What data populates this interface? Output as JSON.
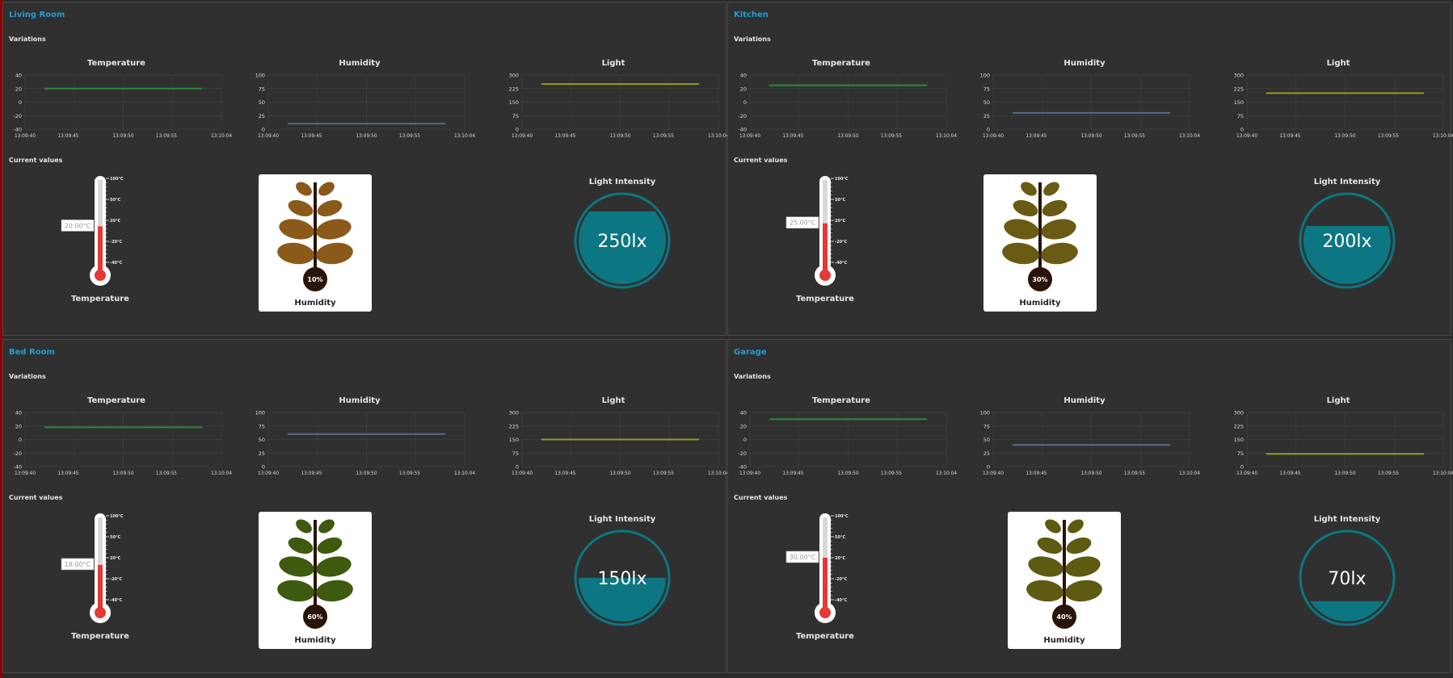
{
  "labels": {
    "variations": "Variations",
    "current_values": "Current values",
    "temperature_chart": "Temperature",
    "humidity_chart": "Humidity",
    "light_chart": "Light",
    "temperature_gauge": "Temperature",
    "humidity_gauge": "Humidity",
    "light_gauge": "Light Intensity"
  },
  "colors": {
    "title": "#1f9fd6",
    "temperature": "#2e8b3a",
    "humidity": "#5a6a8a",
    "light": "#9a9a2a",
    "light_fill": "#0c7782",
    "mercury": "#e53935"
  },
  "axes": {
    "temperature_ticks": [
      "40",
      "20",
      "0",
      "-20",
      "-40"
    ],
    "humidity_ticks": [
      "100",
      "75",
      "50",
      "25",
      "0"
    ],
    "light_ticks": [
      "300",
      "225",
      "150",
      "75",
      "0"
    ],
    "thermo_ticks": [
      "100°C",
      "50°C",
      "20°C",
      "-20°C",
      "-40°C"
    ]
  },
  "rooms": [
    {
      "name": "Living Room",
      "temperature": 20,
      "temperature_label": "20.00°C",
      "humidity": 10,
      "humidity_label": "10%",
      "light": 250,
      "light_label": "250lx",
      "leaf_color": "#8b5a1a",
      "times": [
        "13:09:40",
        "13:09:45",
        "13:09:50",
        "13:09:55",
        "13:10:04"
      ]
    },
    {
      "name": "Kitchen",
      "temperature": 25,
      "temperature_label": "25.00°C",
      "humidity": 30,
      "humidity_label": "30%",
      "light": 200,
      "light_label": "200lx",
      "leaf_color": "#6a5b14",
      "times": [
        "13:09:40",
        "13:09:45",
        "13:09:50",
        "13:09:55",
        "13:10:04"
      ]
    },
    {
      "name": "Bed Room",
      "temperature": 18,
      "temperature_label": "18.00°C",
      "humidity": 60,
      "humidity_label": "60%",
      "light": 150,
      "light_label": "150lx",
      "leaf_color": "#3d5a0f",
      "times": [
        "13:09:40",
        "13:09:45",
        "13:09:50",
        "13:09:55",
        "13:10:04"
      ]
    },
    {
      "name": "Garage",
      "temperature": 30,
      "temperature_label": "30.00°C",
      "humidity": 40,
      "humidity_label": "40%",
      "light": 70,
      "light_label": "70lx",
      "leaf_color": "#5f5a12",
      "times": [
        "13:09:40",
        "13:09:45",
        "13:09:50",
        "13:09:55",
        "13:10:04"
      ]
    }
  ]
}
